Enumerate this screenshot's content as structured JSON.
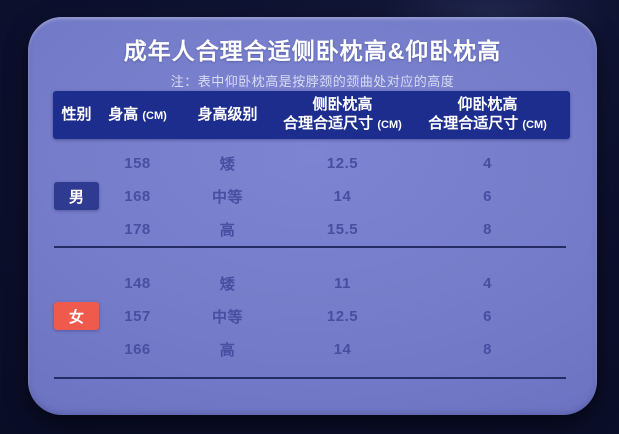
{
  "card": {
    "title": "成年人合理合适侧卧枕高&仰卧枕高",
    "note": "注：表中仰卧枕高是按脖颈的颈曲处对应的高度"
  },
  "table": {
    "headers": [
      {
        "title": "性别"
      },
      {
        "title": "身高",
        "unit": "(CM)"
      },
      {
        "title": "身高级别"
      },
      {
        "title": "侧卧枕高",
        "line2": "合理合适尺寸",
        "unit": "(CM)"
      },
      {
        "title": "仰卧枕高",
        "line2": "合理合适尺寸",
        "unit": "(CM)"
      }
    ],
    "sections": [
      {
        "gender": "男",
        "rows": [
          [
            "158",
            "矮",
            "12.5",
            "4"
          ],
          [
            "168",
            "中等",
            "14",
            "6"
          ],
          [
            "178",
            "高",
            "15.5",
            "8"
          ]
        ]
      },
      {
        "gender": "女",
        "rows": [
          [
            "148",
            "矮",
            "11",
            "4"
          ],
          [
            "157",
            "中等",
            "12.5",
            "6"
          ],
          [
            "166",
            "高",
            "14",
            "8"
          ]
        ]
      }
    ]
  },
  "colors": {
    "background": "#0c102e",
    "panel": "#747bc9",
    "header_bar": "#1c2d8d",
    "male_badge": "#2f3b90",
    "female_badge": "#f05a4d",
    "body_text": "#464fa0",
    "title_text": "#ffffff"
  },
  "chart_data": {
    "type": "table",
    "title": "成年人合理合适侧卧枕高&仰卧枕高",
    "note": "注：表中仰卧枕高是按脖颈的颈曲处对应的高度",
    "columns": [
      "性别",
      "身高 (CM)",
      "身高级别",
      "侧卧枕高 合理合适尺寸 (CM)",
      "仰卧枕高 合理合适尺寸 (CM)"
    ],
    "rows": [
      [
        "男",
        158,
        "矮",
        12.5,
        4
      ],
      [
        "男",
        168,
        "中等",
        14,
        6
      ],
      [
        "男",
        178,
        "高",
        15.5,
        8
      ],
      [
        "女",
        148,
        "矮",
        11,
        4
      ],
      [
        "女",
        157,
        "中等",
        12.5,
        6
      ],
      [
        "女",
        166,
        "高",
        14,
        8
      ]
    ]
  }
}
